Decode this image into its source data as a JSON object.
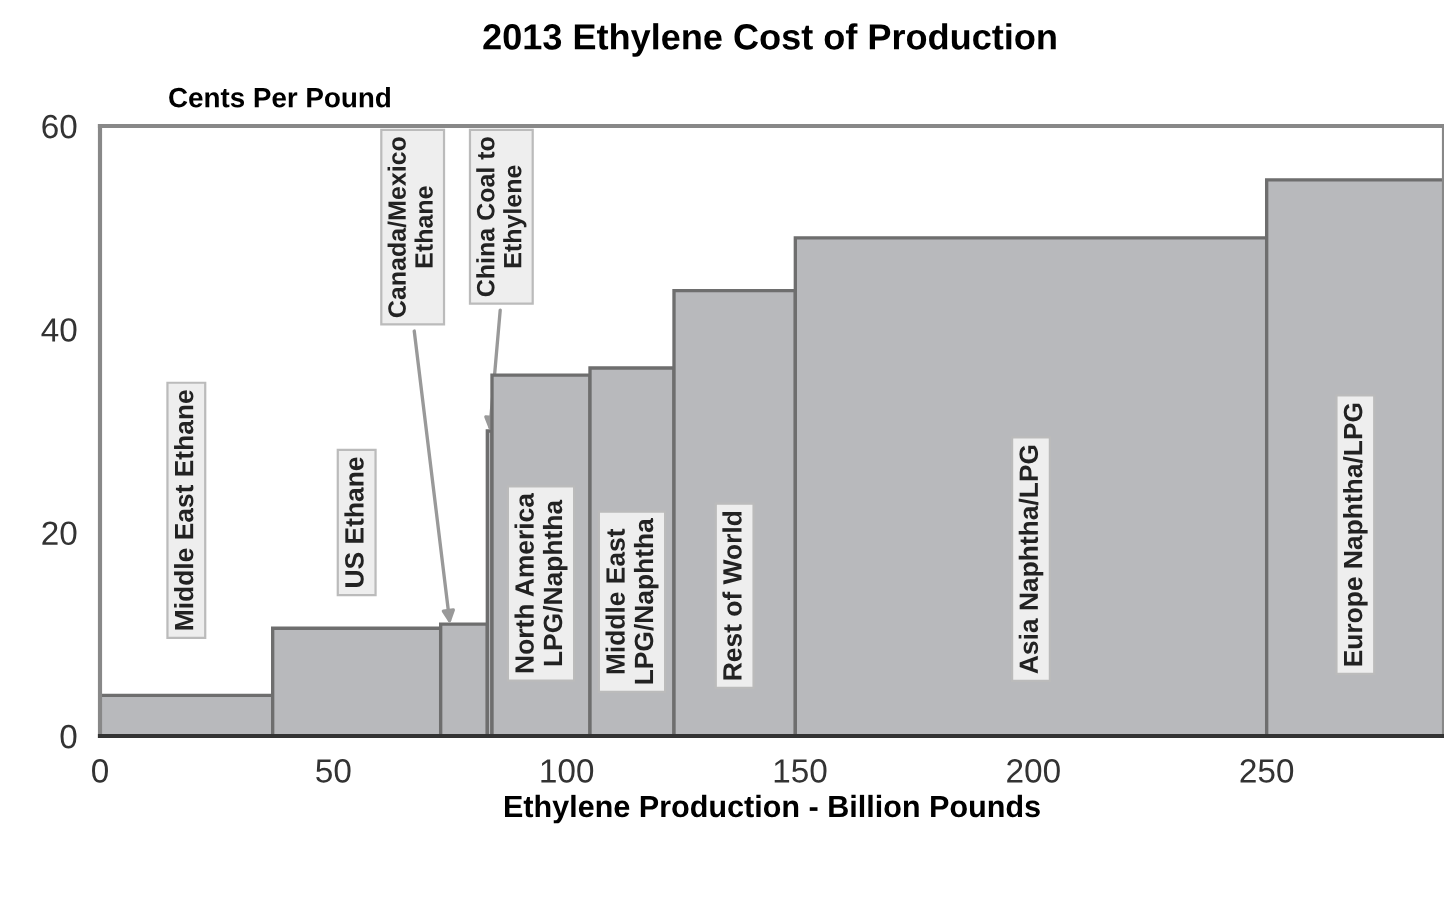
{
  "chart_data": {
    "type": "histogram",
    "title": "2013 Ethylene Cost of Production",
    "ylabel": "Cents Per Pound",
    "xlabel": "Ethylene Production - Billion Pounds",
    "bins": [
      0,
      37,
      73,
      83,
      84,
      105,
      123,
      149,
      250,
      288
    ],
    "values": [
      4,
      10.6,
      11,
      30,
      35.5,
      36.2,
      43.8,
      49,
      54.7
    ],
    "color": "#b8b9bc",
    "xlim": [
      0,
      288
    ],
    "ylim": [
      0,
      60
    ],
    "xticks": [
      0,
      50,
      100,
      150,
      200,
      250
    ],
    "yticks": [
      0,
      20,
      40,
      60
    ],
    "grid": false,
    "annotations": [
      "Middle East Ethane",
      "US Ethane",
      {
        "text": "Canada/Mexico\nEthane",
        "x": 75,
        "y": 11
      },
      {
        "text": "China Coal to\nEthylene",
        "x": 83.5,
        "y": 30
      },
      "North America\nLPG/Naphtha",
      "Middle East\nLPG/Naphtha",
      "Rest of World",
      "Asia Naphtha/LPG",
      "Europe Naphtha/LPG"
    ]
  }
}
